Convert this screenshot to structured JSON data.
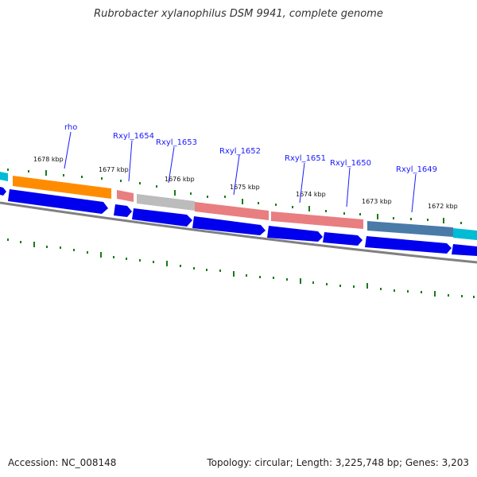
{
  "title": "Rubrobacter xylanophilus DSM 9941, complete genome",
  "footer": {
    "accession": "Accession: NC_008148",
    "summary": "Topology: circular; Length: 3,225,748 bp; Genes: 3,203"
  },
  "gene_labels": [
    "rho",
    "Rxyl_1654",
    "Rxyl_1653",
    "Rxyl_1652",
    "Rxyl_1651",
    "Rxyl_1650",
    "Rxyl_1649"
  ],
  "kbp_labels": [
    "1678 kbp",
    "1677 kbp",
    "1676 kbp",
    "1675 kbp",
    "1674 kbp",
    "1673 kbp",
    "1672 kbp"
  ],
  "colors": {
    "cds_arrow": "#0000ee",
    "orange": "#ff8c00",
    "pink": "#e87e80",
    "gray": "#bcbcbc",
    "steel_blue": "#4a7aa8",
    "cyan": "#00bcd4",
    "backbone": "#808080",
    "tick_green": "#1a7a1a",
    "label_blue": "#1a1aff"
  }
}
